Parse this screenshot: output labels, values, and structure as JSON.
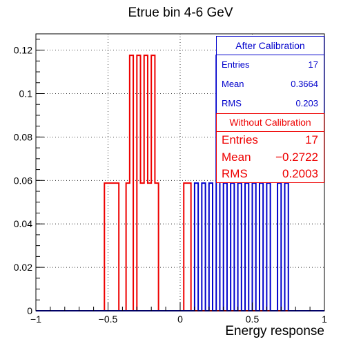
{
  "chart_data": {
    "type": "histogram",
    "title": "Etrue bin 4-6 GeV",
    "xlabel": "Energy response",
    "ylabel": "",
    "xlim": [
      -1,
      1
    ],
    "ylim": [
      0,
      0.1275
    ],
    "grid": true,
    "xticks": [
      -1,
      -0.5,
      0,
      0.5,
      1
    ],
    "xtick_labels": [
      "−1",
      "−0.5",
      "0",
      "0.5",
      "1"
    ],
    "yticks": [
      0,
      0.02,
      0.04,
      0.06,
      0.08,
      0.1,
      0.12
    ],
    "ytick_labels": [
      "0",
      "0.02",
      "0.04",
      "0.06",
      "0.08",
      "0.1",
      "0.12"
    ],
    "bin_edges": [
      -1,
      -0.975,
      -0.95,
      -0.925,
      -0.9,
      -0.875,
      -0.85,
      -0.825,
      -0.8,
      -0.775,
      -0.75,
      -0.725,
      -0.7,
      -0.675,
      -0.65,
      -0.625,
      -0.6,
      -0.575,
      -0.55,
      -0.525,
      -0.5,
      -0.475,
      -0.45,
      -0.425,
      -0.4,
      -0.375,
      -0.35,
      -0.325,
      -0.3,
      -0.275,
      -0.25,
      -0.225,
      -0.2,
      -0.175,
      -0.15,
      -0.125,
      -0.1,
      -0.075,
      -0.05,
      -0.025,
      0,
      0.025,
      0.05,
      0.075,
      0.1,
      0.125,
      0.15,
      0.175,
      0.2,
      0.225,
      0.25,
      0.275,
      0.3,
      0.325,
      0.35,
      0.375,
      0.4,
      0.425,
      0.45,
      0.475,
      0.5,
      0.525,
      0.55,
      0.575,
      0.6,
      0.625,
      0.65,
      0.675,
      0.7,
      0.725,
      0.75,
      0.775,
      0.8,
      0.825,
      0.85,
      0.875,
      0.9,
      0.925,
      0.95,
      0.975,
      1
    ],
    "series": [
      {
        "name": "Without Calibration",
        "color": "#ee0000",
        "values": [
          0,
          0,
          0,
          0,
          0,
          0,
          0,
          0,
          0,
          0,
          0,
          0,
          0,
          0,
          0,
          0,
          0,
          0,
          0,
          0.0588,
          0.0588,
          0.0588,
          0.0588,
          0,
          0,
          0.0588,
          0.1176,
          0,
          0.1176,
          0.0588,
          0.1176,
          0.0588,
          0.1176,
          0.0588,
          0,
          0,
          0,
          0,
          0,
          0,
          0,
          0.0588,
          0.0588,
          0,
          0,
          0,
          0,
          0,
          0,
          0,
          0,
          0,
          0,
          0,
          0,
          0,
          0,
          0,
          0,
          0,
          0,
          0,
          0,
          0,
          0,
          0,
          0,
          0,
          0,
          0,
          0,
          0,
          0,
          0,
          0,
          0,
          0,
          0,
          0,
          0
        ]
      },
      {
        "name": "After Calibration",
        "color": "#0000cc",
        "values": [
          0,
          0,
          0,
          0,
          0,
          0,
          0,
          0,
          0,
          0,
          0,
          0,
          0,
          0,
          0,
          0,
          0,
          0,
          0,
          0,
          0,
          0,
          0,
          0,
          0,
          0,
          0,
          0,
          0,
          0,
          0,
          0,
          0,
          0,
          0,
          0,
          0,
          0,
          0,
          0,
          0,
          0,
          0,
          0,
          0.0588,
          0,
          0.0588,
          0,
          0.0588,
          0,
          0.1176,
          0,
          0.0588,
          0,
          0.0588,
          0,
          0.0588,
          0,
          0.0588,
          0,
          0.0588,
          0,
          0.0588,
          0,
          0.0588,
          0,
          0,
          0.0588,
          0,
          0.0588,
          0,
          0,
          0,
          0,
          0,
          0,
          0,
          0,
          0,
          0
        ]
      }
    ],
    "stats": {
      "after": {
        "title": "After Calibration",
        "entries_label": "Entries",
        "entries": "17",
        "mean_label": "Mean",
        "mean": "0.3664",
        "rms_label": "RMS",
        "rms": "0.203"
      },
      "before": {
        "title": "Without Calibration",
        "entries_label": "Entries",
        "entries": "17",
        "mean_label": "Mean",
        "mean": "−0.2722",
        "rms_label": "RMS",
        "rms": "0.2003"
      }
    }
  }
}
